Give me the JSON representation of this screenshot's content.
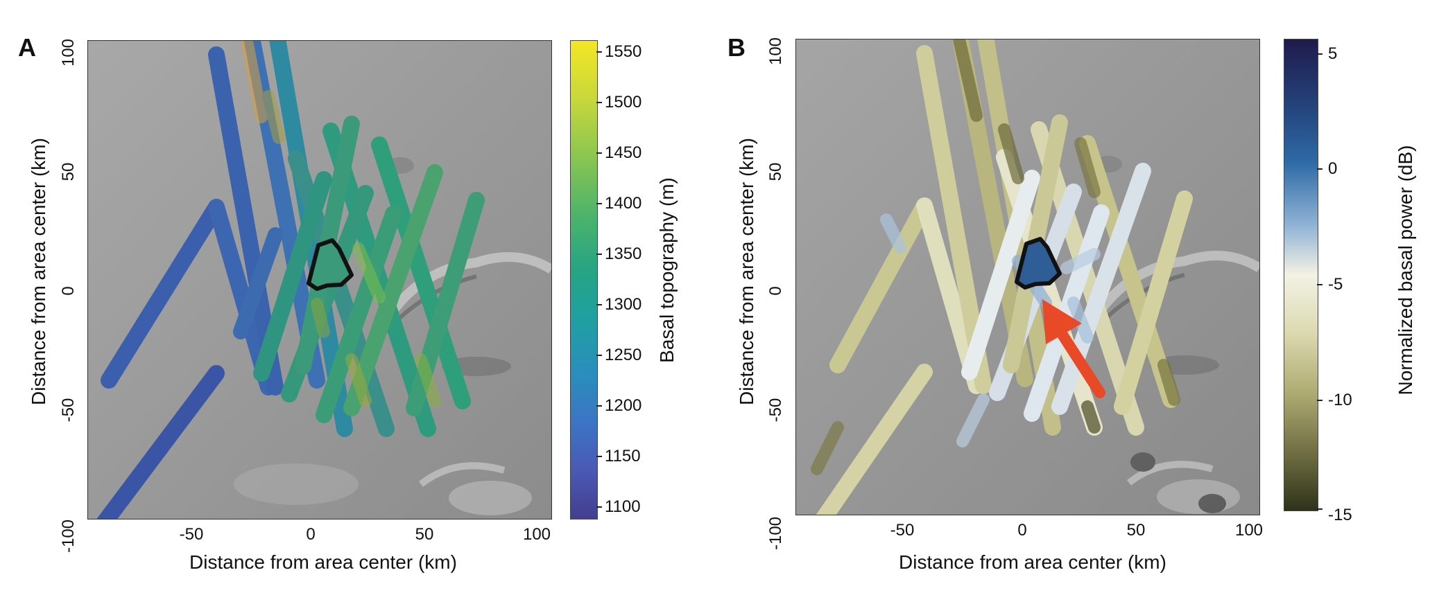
{
  "panels": [
    {
      "label": "A",
      "xlabel": "Distance from area center (km)",
      "ylabel": "Distance from area center (km)",
      "xticks": [
        "-50",
        "0",
        "50",
        "100"
      ],
      "yticks": [
        "100",
        "50",
        "0",
        "-50",
        "-100"
      ],
      "colorbar": {
        "title": "Basal topography (m)",
        "ticks": [
          "1550",
          "1500",
          "1450",
          "1400",
          "1350",
          "1300",
          "1250",
          "1200",
          "1150",
          "1100"
        ],
        "colormap": "viridis"
      }
    },
    {
      "label": "B",
      "xlabel": "Distance from area center (km)",
      "ylabel": "Distance from area center (km)",
      "xticks": [
        "-50",
        "0",
        "50",
        "100"
      ],
      "yticks": [
        "100",
        "50",
        "0",
        "-50",
        "-100"
      ],
      "colorbar": {
        "title": "Normalized basal power (dB)",
        "ticks": [
          "5",
          "0",
          "-5",
          "-10",
          "-15"
        ],
        "colormap": "blue-white-olive"
      },
      "annotation": {
        "type": "arrow",
        "color": "#e84a27"
      }
    }
  ],
  "colors": {
    "viridis_top": "#f4e625",
    "viridis_bottom": "#433e8f",
    "power_top": "#1f1b4d",
    "power_mid": "#f3f2e4",
    "power_bottom": "#2e3219",
    "outline": "#111111",
    "arrow": "#e84a27"
  }
}
